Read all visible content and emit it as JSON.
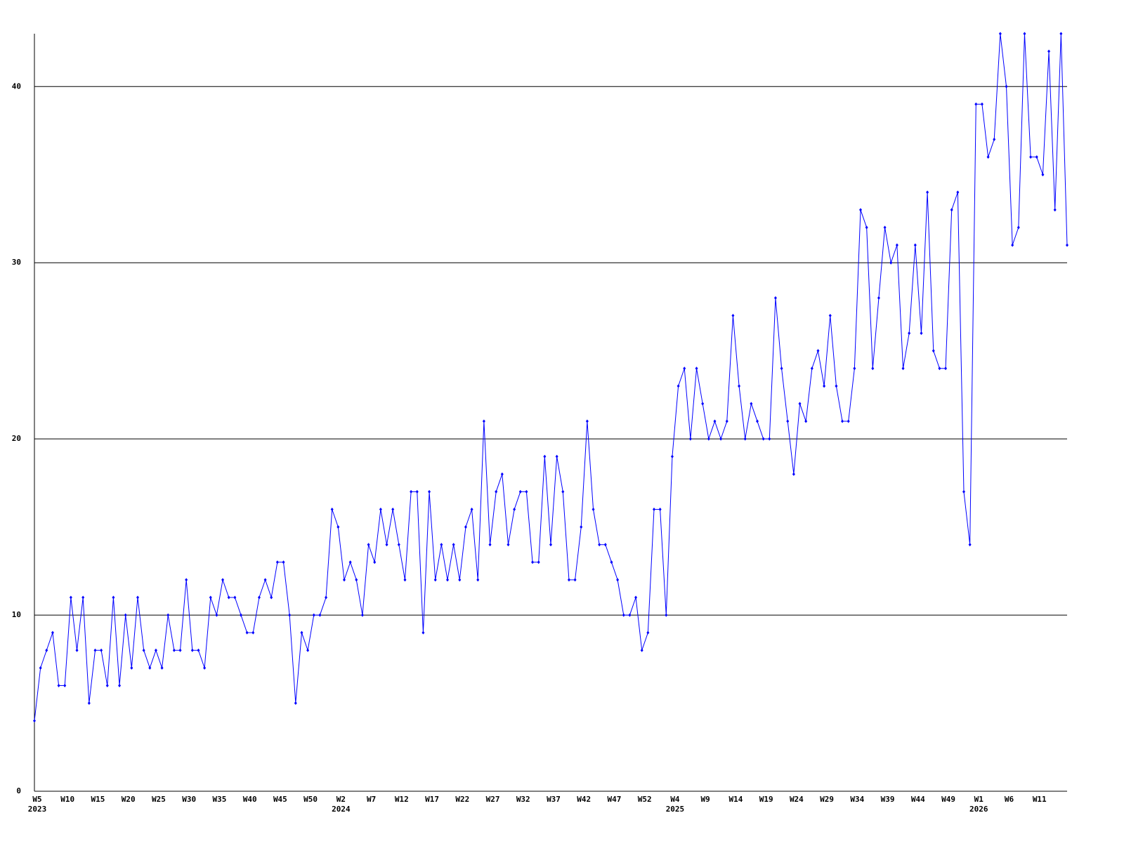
{
  "chart_data": {
    "type": "line",
    "categories": [
      "W5",
      null,
      null,
      null,
      null,
      "W10",
      null,
      null,
      null,
      null,
      "W15",
      null,
      null,
      null,
      null,
      "W20",
      null,
      null,
      null,
      null,
      "W25",
      null,
      null,
      null,
      null,
      "W30",
      null,
      null,
      null,
      null,
      "W35",
      null,
      null,
      null,
      null,
      "W40",
      null,
      null,
      null,
      null,
      "W45",
      null,
      null,
      null,
      null,
      "W50",
      null,
      null,
      null,
      null,
      "W2",
      null,
      null,
      null,
      null,
      "W7",
      null,
      null,
      null,
      null,
      "W12",
      null,
      null,
      null,
      null,
      "W17",
      null,
      null,
      null,
      null,
      "W22",
      null,
      null,
      null,
      null,
      "W27",
      null,
      null,
      null,
      null,
      "W32",
      null,
      null,
      null,
      null,
      "W37",
      null,
      null,
      null,
      null,
      "W42",
      null,
      null,
      null,
      null,
      "W47",
      null,
      null,
      null,
      null,
      "W52",
      null,
      null,
      null,
      null,
      "W4",
      null,
      null,
      null,
      null,
      "W9",
      null,
      null,
      null,
      null,
      "W14",
      null,
      null,
      null,
      null,
      "W19",
      null,
      null,
      null,
      null,
      "W24",
      null,
      null,
      null,
      null,
      "W29",
      null,
      null,
      null,
      null,
      "W34",
      null,
      null,
      null,
      null,
      "W39",
      null,
      null,
      null,
      null,
      "W44",
      null,
      null,
      null,
      null,
      "W49",
      null,
      null,
      null,
      null,
      "W1",
      null,
      null,
      null,
      null,
      "W6",
      null,
      null,
      null,
      null,
      "W11",
      null,
      null,
      null,
      null,
      null
    ],
    "category_years": [
      "2023",
      null,
      null,
      null,
      null,
      null,
      null,
      null,
      null,
      null,
      null,
      null,
      null,
      null,
      null,
      null,
      null,
      null,
      null,
      null,
      null,
      null,
      null,
      null,
      null,
      null,
      null,
      null,
      null,
      null,
      null,
      null,
      null,
      null,
      null,
      null,
      null,
      null,
      null,
      null,
      null,
      null,
      null,
      null,
      null,
      null,
      null,
      null,
      null,
      null,
      "2024",
      null,
      null,
      null,
      null,
      null,
      null,
      null,
      null,
      null,
      null,
      null,
      null,
      null,
      null,
      null,
      null,
      null,
      null,
      null,
      null,
      null,
      null,
      null,
      null,
      null,
      null,
      null,
      null,
      null,
      null,
      null,
      null,
      null,
      null,
      null,
      null,
      null,
      null,
      null,
      null,
      null,
      null,
      null,
      null,
      null,
      null,
      null,
      null,
      null,
      null,
      null,
      null,
      null,
      null,
      "2025",
      null,
      null,
      null,
      null,
      null,
      null,
      null,
      null,
      null,
      null,
      null,
      null,
      null,
      null,
      null,
      null,
      null,
      null,
      null,
      null,
      null,
      null,
      null,
      null,
      null,
      null,
      null,
      null,
      null,
      null,
      null,
      null,
      null,
      null,
      null,
      null,
      null,
      null,
      null,
      null,
      null,
      null,
      null,
      null,
      null,
      null,
      null,
      null,
      null,
      "2026",
      null,
      null,
      null,
      null,
      null,
      null,
      null,
      null,
      null,
      null,
      null,
      null,
      null,
      null,
      null
    ],
    "series": [
      {
        "color": "#0000ff",
        "values": [
          4,
          7,
          8,
          9,
          6,
          6,
          11,
          8,
          11,
          5,
          8,
          8,
          6,
          11,
          6,
          10,
          7,
          11,
          8,
          7,
          8,
          7,
          10,
          8,
          8,
          12,
          8,
          8,
          7,
          11,
          10,
          12,
          11,
          11,
          10,
          9,
          9,
          11,
          12,
          11,
          13,
          13,
          10,
          5,
          9,
          8,
          10,
          10,
          11,
          16,
          15,
          12,
          13,
          12,
          10,
          14,
          13,
          16,
          14,
          16,
          14,
          12,
          17,
          17,
          9,
          17,
          12,
          14,
          12,
          14,
          12,
          15,
          16,
          12,
          21,
          14,
          17,
          18,
          14,
          16,
          17,
          17,
          13,
          13,
          19,
          14,
          19,
          17,
          12,
          12,
          15,
          21,
          16,
          14,
          14,
          13,
          12,
          10,
          10,
          11,
          8,
          9,
          16,
          16,
          10,
          19,
          23,
          24,
          20,
          24,
          22,
          20,
          21,
          20,
          21,
          27,
          23,
          20,
          22,
          21,
          20,
          20,
          28,
          24,
          21,
          18,
          22,
          21,
          24,
          25,
          23,
          27,
          23,
          21,
          21,
          24,
          33,
          32,
          24,
          28,
          32,
          30,
          31,
          24,
          26,
          31,
          26,
          34,
          25,
          24,
          24,
          33,
          34,
          17,
          14,
          39,
          39,
          36,
          37,
          43,
          40,
          31,
          32,
          43,
          36,
          36,
          35,
          42,
          33,
          43,
          31
        ]
      }
    ],
    "ylim": [
      0,
      43
    ],
    "yticks": [
      0,
      10,
      20,
      30,
      40
    ],
    "grid": true
  }
}
